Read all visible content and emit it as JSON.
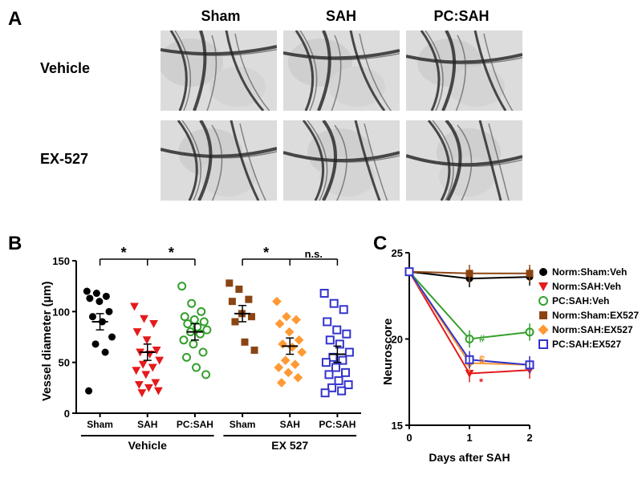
{
  "panelA": {
    "label": "A",
    "col_headers": [
      "Sham",
      "SAH",
      "PC:SAH"
    ],
    "row_labels": [
      "Vehicle",
      "EX-527"
    ]
  },
  "panelB": {
    "label": "B",
    "ylabel": "Vessel diameter (µm)",
    "ylim": [
      0,
      150
    ],
    "yticks": [
      0,
      50,
      100,
      150
    ],
    "categories": [
      "Sham",
      "SAH",
      "PC:SAH",
      "Sham",
      "SAH",
      "PC:SAH"
    ],
    "group_labels": [
      "Vehicle",
      "EX 527"
    ],
    "colors": {
      "sham_veh": "#000000",
      "sah_veh": "#e41a1c",
      "pc_sah_veh": "#33a02c",
      "sham_ex": "#8b4513",
      "sah_ex": "#ff9933",
      "pc_sah_ex": "#3333cc"
    },
    "markers": {
      "sham_veh": "filled-circle",
      "sah_veh": "filled-triangle-down",
      "pc_sah_veh": "open-circle",
      "sham_ex": "filled-square",
      "sah_ex": "filled-diamond",
      "pc_sah_ex": "open-square"
    },
    "data": {
      "sham_veh": [
        120,
        118,
        115,
        113,
        110,
        100,
        95,
        90,
        75,
        68,
        60,
        22
      ],
      "sah_veh": [
        105,
        93,
        88,
        80,
        72,
        62,
        60,
        58,
        52,
        48,
        45,
        42,
        38,
        30,
        28,
        25,
        22,
        20
      ],
      "pc_sah_veh": [
        125,
        108,
        100,
        95,
        92,
        90,
        88,
        85,
        82,
        80,
        78,
        72,
        68,
        60,
        55,
        45,
        38
      ],
      "sham_ex": [
        128,
        122,
        112,
        110,
        98,
        95,
        90,
        70,
        62
      ],
      "sah_ex": [
        110,
        95,
        92,
        88,
        80,
        72,
        68,
        65,
        60,
        52,
        48,
        45,
        40,
        35,
        30
      ],
      "pc_sah_ex": [
        118,
        108,
        102,
        90,
        82,
        78,
        72,
        68,
        60,
        55,
        52,
        50,
        45,
        40,
        38,
        32,
        28,
        25,
        22,
        20
      ]
    },
    "means": {
      "sham_veh": 90,
      "sah_veh": 60,
      "pc_sah_veh": 80,
      "sham_ex": 98,
      "sah_ex": 66,
      "pc_sah_ex": 58
    },
    "sig": [
      {
        "text": "*",
        "between": [
          0,
          1
        ]
      },
      {
        "text": "*",
        "between": [
          1,
          2
        ]
      },
      {
        "text": "*",
        "between": [
          3,
          4
        ]
      },
      {
        "text": "n.s.",
        "between": [
          4,
          5
        ]
      }
    ]
  },
  "panelC": {
    "label": "C",
    "ylabel": "Neuroscore",
    "xlabel": "Days after SAH",
    "ylim": [
      15,
      25
    ],
    "yticks": [
      15,
      20,
      25
    ],
    "xticks": [
      0,
      1,
      2
    ],
    "series": [
      {
        "name": "Norm:Sham:Veh",
        "color": "#000000",
        "marker": "filled-circle",
        "y": [
          23.9,
          23.5,
          23.6
        ]
      },
      {
        "name": "Norm:SAH:Veh",
        "color": "#e41a1c",
        "marker": "filled-triangle-down",
        "y": [
          23.9,
          18.0,
          18.2
        ],
        "ann": [
          "*",
          "*"
        ]
      },
      {
        "name": "PC:SAH:Veh",
        "color": "#33a02c",
        "marker": "open-circle",
        "y": [
          23.9,
          20.0,
          20.4
        ],
        "ann": [
          "#",
          "#"
        ]
      },
      {
        "name": "Norm:Sham:EX527",
        "color": "#8b4513",
        "marker": "filled-square",
        "y": [
          23.9,
          23.8,
          23.8
        ]
      },
      {
        "name": "Norm:SAH:EX527",
        "color": "#ff9933",
        "marker": "filled-diamond",
        "y": [
          23.9,
          18.6,
          18.5
        ],
        "ann": [
          "$",
          "&"
        ]
      },
      {
        "name": "PC:SAH:EX527",
        "color": "#3333cc",
        "marker": "open-square",
        "y": [
          23.9,
          18.8,
          18.5
        ],
        "ann": [
          "&",
          "&"
        ]
      }
    ],
    "annotations_at": {
      "1": [
        {
          "t": "#",
          "y": 20.0,
          "c": "#33a02c"
        },
        {
          "t": "$",
          "y": 18.8,
          "c": "#ff9933"
        },
        {
          "t": "*",
          "y": 17.5,
          "c": "#e41a1c"
        }
      ],
      "2": [
        {
          "t": "#",
          "y": 20.4,
          "c": "#33a02c"
        },
        {
          "t": "&",
          "y": 18.9,
          "c": "#3333cc"
        },
        {
          "t": "&",
          "y": 18.6,
          "c": "#ff9933"
        },
        {
          "t": "*",
          "y": 18.0,
          "c": "#e41a1c"
        }
      ]
    }
  }
}
